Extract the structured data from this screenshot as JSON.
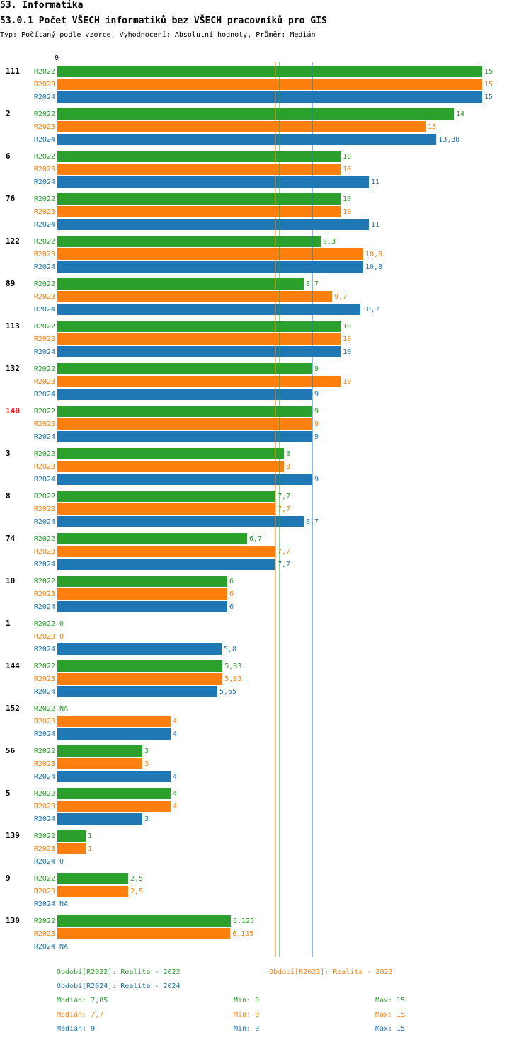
{
  "header": {
    "title": "53. Informatika",
    "subtitle": "53.0.1 Počet VŠECH informatiků bez VŠECH pracovníků pro GIS",
    "description": "Typ: Počítaný podle vzorce, Vyhodnocení: Absolutní hodnoty, Průměr: Medián"
  },
  "colors": {
    "R2022": "#2ca02c",
    "R2023": "#ff7f0e",
    "R2024": "#1f77b4",
    "highlight": "#ff0000"
  },
  "chart_data": {
    "type": "bar",
    "orientation": "horizontal",
    "axis_zero_label": "0",
    "xlim": [
      0,
      15
    ],
    "series_names": [
      "R2022",
      "R2023",
      "R2024"
    ],
    "highlight_category": "140",
    "groups": [
      {
        "label": "111",
        "values": [
          15,
          15,
          15
        ],
        "labels": [
          "15",
          "15",
          "15"
        ]
      },
      {
        "label": "2",
        "values": [
          14,
          13,
          13.38
        ],
        "labels": [
          "14",
          "13",
          "13,38"
        ]
      },
      {
        "label": "6",
        "values": [
          10,
          10,
          11
        ],
        "labels": [
          "10",
          "10",
          "11"
        ]
      },
      {
        "label": "76",
        "values": [
          10,
          10,
          11
        ],
        "labels": [
          "10",
          "10",
          "11"
        ]
      },
      {
        "label": "122",
        "values": [
          9.3,
          10.8,
          10.8
        ],
        "labels": [
          "9,3",
          "10,8",
          "10,8"
        ]
      },
      {
        "label": "89",
        "values": [
          8.7,
          9.7,
          10.7
        ],
        "labels": [
          "8,7",
          "9,7",
          "10,7"
        ]
      },
      {
        "label": "113",
        "values": [
          10,
          10,
          10
        ],
        "labels": [
          "10",
          "10",
          "10"
        ]
      },
      {
        "label": "132",
        "values": [
          9,
          10,
          9
        ],
        "labels": [
          "9",
          "10",
          "9"
        ]
      },
      {
        "label": "140",
        "values": [
          9,
          9,
          9
        ],
        "labels": [
          "9",
          "9",
          "9"
        ]
      },
      {
        "label": "3",
        "values": [
          8,
          8,
          9
        ],
        "labels": [
          "8",
          "8",
          "9"
        ]
      },
      {
        "label": "8",
        "values": [
          7.7,
          7.7,
          8.7
        ],
        "labels": [
          "7,7",
          "7,7",
          "8,7"
        ]
      },
      {
        "label": "74",
        "values": [
          6.7,
          7.7,
          7.7
        ],
        "labels": [
          "6,7",
          "7,7",
          "7,7"
        ]
      },
      {
        "label": "10",
        "values": [
          6,
          6,
          6
        ],
        "labels": [
          "6",
          "6",
          "6"
        ]
      },
      {
        "label": "1",
        "values": [
          0,
          0,
          5.8
        ],
        "labels": [
          "0",
          "0",
          "5,8"
        ]
      },
      {
        "label": "144",
        "values": [
          5.83,
          5.83,
          5.65
        ],
        "labels": [
          "5,83",
          "5,83",
          "5,65"
        ]
      },
      {
        "label": "152",
        "values": [
          null,
          4,
          4
        ],
        "labels": [
          "NA",
          "4",
          "4"
        ]
      },
      {
        "label": "56",
        "values": [
          3,
          3,
          4
        ],
        "labels": [
          "3",
          "3",
          "4"
        ]
      },
      {
        "label": "5",
        "values": [
          4,
          4,
          3
        ],
        "labels": [
          "4",
          "4",
          "3"
        ]
      },
      {
        "label": "139",
        "values": [
          1,
          1,
          0
        ],
        "labels": [
          "1",
          "1",
          "0"
        ]
      },
      {
        "label": "9",
        "values": [
          2.5,
          2.5,
          null
        ],
        "labels": [
          "2,5",
          "2,5",
          "NA"
        ]
      },
      {
        "label": "130",
        "values": [
          6.125,
          6.105,
          null
        ],
        "labels": [
          "6,125",
          "6,105",
          "NA"
        ]
      }
    ],
    "medians": {
      "R2022": 7.85,
      "R2023": 7.7,
      "R2024": 9
    }
  },
  "legend": {
    "r2022": "Období[R2022]: Realita - 2022",
    "r2023": "Období[R2023]: Realita - 2023",
    "r2024": "Období[R2024]: Realita - 2024"
  },
  "stats": [
    {
      "series": "R2022",
      "median": "Medián: 7,85",
      "min": "Min: 0",
      "max": "Max: 15"
    },
    {
      "series": "R2023",
      "median": "Medián: 7,7",
      "min": "Min: 0",
      "max": "Max: 15"
    },
    {
      "series": "R2024",
      "median": "Medián: 9",
      "min": "Min: 0",
      "max": "Max: 15"
    }
  ]
}
